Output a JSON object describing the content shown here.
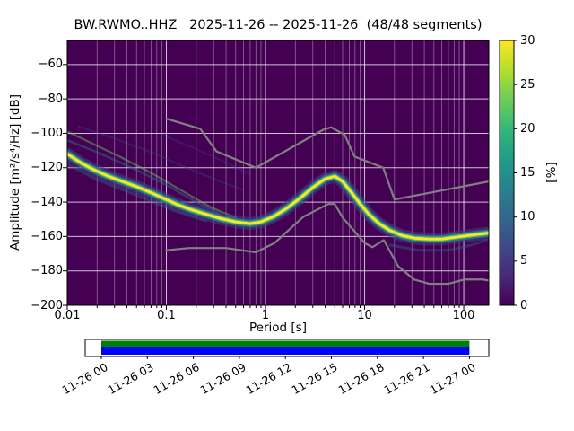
{
  "title": "BW.RWMO..HHZ   2025-11-26 -- 2025-11-26  (48/48 segments)",
  "axes": {
    "xlabel": "Period [s]",
    "ylabel": "Amplitude [m²/s⁴/Hz] [dB]",
    "x_scale": "log",
    "x_ticks": [
      0.01,
      0.1,
      1,
      10,
      100
    ],
    "x_tick_labels": [
      "0.01",
      "0.1",
      "1",
      "10",
      "100"
    ],
    "y_ticks": [
      -200,
      -180,
      -160,
      -140,
      -120,
      -100,
      -80,
      -60
    ],
    "y_tick_labels": [
      "−200",
      "−180",
      "−160",
      "−140",
      "−120",
      "−100",
      "−80",
      "−60"
    ],
    "xlim": [
      0.01,
      179
    ],
    "ylim": [
      -200,
      -46
    ],
    "grid": true,
    "background_color": "#440154",
    "grid_color_major": "rgba(255,255,255,0.75)",
    "grid_color_minor": "rgba(255,255,255,0.4)"
  },
  "colorbar": {
    "label": "[%]",
    "ticks": [
      0,
      5,
      10,
      15,
      20,
      25,
      30
    ],
    "tick_labels": [
      "0",
      "5",
      "10",
      "15",
      "20",
      "25",
      "30"
    ],
    "lim": [
      0,
      30
    ],
    "colormap": "viridis",
    "stops": [
      [
        0,
        "#440154"
      ],
      [
        0.111,
        "#482878"
      ],
      [
        0.222,
        "#3e4989"
      ],
      [
        0.333,
        "#31688e"
      ],
      [
        0.444,
        "#26828e"
      ],
      [
        0.556,
        "#1f9e89"
      ],
      [
        0.667,
        "#35b779"
      ],
      [
        0.778,
        "#6dcd59"
      ],
      [
        0.889,
        "#b4de2c"
      ],
      [
        1,
        "#fde725"
      ]
    ]
  },
  "chart_data": {
    "type": "heatmap",
    "title": "PPSD probability density, BW.RWMO..HHZ, 2025-11-26 to 2025-11-26, 48/48 segments",
    "xlabel": "Period [s]",
    "ylabel": "Amplitude [m²/s⁴/Hz] [dB]",
    "x_scale": "log",
    "xlim": [
      0.01,
      179
    ],
    "ylim": [
      -200,
      -46
    ],
    "probability_percent_range": [
      0,
      30
    ],
    "legend": "none",
    "series": [
      {
        "name": "psd_mode_ridge",
        "description": "highest-probability PSD curve (~30%, yellow core of histogram)",
        "points": [
          [
            0.01,
            -112
          ],
          [
            0.014,
            -117.5
          ],
          [
            0.019,
            -121.5
          ],
          [
            0.026,
            -125
          ],
          [
            0.036,
            -128
          ],
          [
            0.05,
            -131
          ],
          [
            0.07,
            -134.5
          ],
          [
            0.095,
            -138
          ],
          [
            0.13,
            -141.5
          ],
          [
            0.18,
            -144.5
          ],
          [
            0.25,
            -147
          ],
          [
            0.35,
            -149.5
          ],
          [
            0.5,
            -151.5
          ],
          [
            0.7,
            -152.5
          ],
          [
            0.9,
            -151.5
          ],
          [
            1.2,
            -148.5
          ],
          [
            1.6,
            -144
          ],
          [
            2.2,
            -138
          ],
          [
            3,
            -131.5
          ],
          [
            4,
            -126.5
          ],
          [
            5,
            -125
          ],
          [
            6,
            -128
          ],
          [
            7.5,
            -135
          ],
          [
            9,
            -141
          ],
          [
            11,
            -147
          ],
          [
            14,
            -152.5
          ],
          [
            18,
            -156.5
          ],
          [
            24,
            -159.5
          ],
          [
            32,
            -161
          ],
          [
            45,
            -161.5
          ],
          [
            60,
            -161.5
          ],
          [
            80,
            -160.5
          ],
          [
            110,
            -159.5
          ],
          [
            150,
            -158.5
          ],
          [
            179,
            -158
          ]
        ]
      },
      {
        "name": "nhnm",
        "description": "Peterson New High Noise Model (gray line)",
        "points": [
          [
            0.1,
            -91.5
          ],
          [
            0.22,
            -97.4
          ],
          [
            0.32,
            -110.5
          ],
          [
            0.8,
            -120
          ],
          [
            3.8,
            -98
          ],
          [
            4.6,
            -96.5
          ],
          [
            6.3,
            -101
          ],
          [
            7.9,
            -113.5
          ],
          [
            15.4,
            -120
          ],
          [
            20,
            -138.5
          ],
          [
            179,
            -128
          ]
        ]
      },
      {
        "name": "nlnm",
        "description": "Peterson New Low Noise Model (gray line)",
        "points": [
          [
            0.1,
            -168
          ],
          [
            0.17,
            -166.7
          ],
          [
            0.4,
            -166.7
          ],
          [
            0.8,
            -169.2
          ],
          [
            1.24,
            -163.7
          ],
          [
            2.4,
            -148.6
          ],
          [
            4.3,
            -141.1
          ],
          [
            5,
            -141.1
          ],
          [
            6,
            -149
          ],
          [
            10,
            -163.8
          ],
          [
            12,
            -166.2
          ],
          [
            15.6,
            -162.1
          ],
          [
            21.9,
            -177.5
          ],
          [
            31.6,
            -185
          ],
          [
            45,
            -187.5
          ],
          [
            70,
            -187.5
          ],
          [
            101,
            -185
          ],
          [
            154,
            -185
          ],
          [
            179,
            -185.6
          ]
        ]
      }
    ],
    "faint_streaks": [
      {
        "points": [
          [
            0.01,
            -99
          ],
          [
            0.018,
            -106
          ],
          [
            0.035,
            -114
          ],
          [
            0.07,
            -123
          ],
          [
            0.14,
            -133
          ],
          [
            0.28,
            -143
          ],
          [
            0.5,
            -149
          ]
        ],
        "color": "rgba(109,205,89,0.45)",
        "width": 2.2
      },
      {
        "points": [
          [
            0.01,
            -104
          ],
          [
            0.02,
            -111
          ],
          [
            0.045,
            -120
          ],
          [
            0.1,
            -130
          ],
          [
            0.2,
            -140
          ],
          [
            0.35,
            -147
          ]
        ],
        "color": "rgba(49,104,142,0.5)",
        "width": 2.5
      },
      {
        "points": [
          [
            0.013,
            -96
          ],
          [
            0.03,
            -103
          ],
          [
            0.07,
            -111
          ],
          [
            0.16,
            -120
          ],
          [
            0.35,
            -128
          ],
          [
            0.6,
            -133
          ]
        ],
        "color": "rgba(62,73,137,0.35)",
        "width": 2
      },
      {
        "points": [
          [
            0.09,
            -101
          ],
          [
            0.18,
            -108
          ],
          [
            0.4,
            -117
          ],
          [
            0.7,
            -124
          ]
        ],
        "color": "rgba(62,73,137,0.3)",
        "width": 2
      },
      {
        "points": [
          [
            18,
            -165
          ],
          [
            35,
            -168
          ],
          [
            70,
            -168
          ],
          [
            120,
            -165
          ],
          [
            170,
            -162
          ]
        ],
        "color": "rgba(49,104,142,0.4)",
        "width": 3
      },
      {
        "points": [
          [
            0.01,
            -118
          ],
          [
            0.02,
            -127
          ],
          [
            0.05,
            -136
          ],
          [
            0.12,
            -145
          ],
          [
            0.25,
            -151
          ]
        ],
        "color": "rgba(49,104,142,0.4)",
        "width": 3
      }
    ],
    "ridge_bands": [
      {
        "width": 14,
        "color": "rgba(65,68,135,0.55)"
      },
      {
        "width": 8.5,
        "color": "rgba(42,120,142,0.85)"
      },
      {
        "width": 5,
        "color": "rgba(84,197,104,0.95)"
      },
      {
        "width": 2.8,
        "color": "#fde725"
      }
    ],
    "noise_model_color": "#808080",
    "noise_model_width": 2.2
  },
  "timeline": {
    "tick_labels": [
      "11-26 00",
      "11-26 03",
      "11-26 06",
      "11-26 09",
      "11-26 12",
      "11-26 15",
      "11-26 18",
      "11-26 21",
      "11-27 00"
    ],
    "coverage_color": "#008000",
    "segments_color": "#0000ff",
    "coverage_start_frac": 0.04,
    "coverage_end_frac": 0.952
  }
}
